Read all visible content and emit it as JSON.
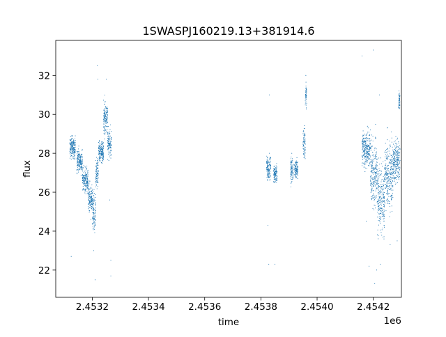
{
  "chart_data": {
    "type": "scatter",
    "title": "1SWASPJ160219.13+381914.6",
    "xlabel": "time",
    "ylabel": "flux",
    "x_offset_label": "1e6",
    "x_tick_labels": [
      "2.4532",
      "2.4534",
      "2.4536",
      "2.4538",
      "2.4540",
      "2.4542"
    ],
    "y_tick_labels": [
      "22",
      "24",
      "26",
      "28",
      "30",
      "32"
    ],
    "x_ticks": [
      2453200,
      2453400,
      2453600,
      2453800,
      2454000,
      2454200
    ],
    "y_ticks": [
      22,
      24,
      26,
      28,
      30,
      32
    ],
    "xlim": [
      2453070,
      2454300
    ],
    "ylim": [
      20.6,
      33.8
    ],
    "grid": false,
    "marker_color": "#1f77b4",
    "series": [
      {
        "name": "",
        "segments": [
          {
            "x_start": 2453120,
            "x_end": 2453140,
            "y_mid": 28.3,
            "y_spread": 0.9,
            "outliers": [
              [
                2453125,
                22.7
              ]
            ]
          },
          {
            "x_start": 2453145,
            "x_end": 2453165,
            "y_mid": 27.6,
            "y_spread": 1.0,
            "outliers": []
          },
          {
            "x_start": 2453165,
            "x_end": 2453185,
            "y_mid": 26.6,
            "y_spread": 1.1,
            "outliers": []
          },
          {
            "x_start": 2453185,
            "x_end": 2453200,
            "y_mid": 25.7,
            "y_spread": 1.2,
            "outliers": [
              [
                2453195,
                24.6
              ]
            ]
          },
          {
            "x_start": 2453200,
            "x_end": 2453212,
            "y_mid": 25.0,
            "y_spread": 1.6,
            "outliers": [
              [
                2453205,
                23.0
              ],
              [
                2453210,
                21.5
              ]
            ]
          },
          {
            "x_start": 2453212,
            "x_end": 2453222,
            "y_mid": 27.0,
            "y_spread": 1.2,
            "outliers": [
              [
                2453218,
                32.5
              ],
              [
                2453220,
                31.8
              ]
            ]
          },
          {
            "x_start": 2453222,
            "x_end": 2453240,
            "y_mid": 28.1,
            "y_spread": 1.0,
            "outliers": []
          },
          {
            "x_start": 2453240,
            "x_end": 2453255,
            "y_mid": 29.8,
            "y_spread": 1.4,
            "outliers": [
              [
                2453250,
                31.8
              ]
            ]
          },
          {
            "x_start": 2453255,
            "x_end": 2453268,
            "y_mid": 28.5,
            "y_spread": 1.2,
            "outliers": [
              [
                2453262,
                25.6
              ],
              [
                2453266,
                21.7
              ],
              [
                2453266,
                22.5
              ]
            ]
          },
          {
            "x_start": 2453820,
            "x_end": 2453835,
            "y_mid": 27.3,
            "y_spread": 1.0,
            "outliers": [
              [
                2453825,
                24.3
              ],
              [
                2453828,
                22.3
              ],
              [
                2453830,
                31.0
              ]
            ]
          },
          {
            "x_start": 2453845,
            "x_end": 2453858,
            "y_mid": 26.9,
            "y_spread": 0.8,
            "outliers": [
              [
                2453850,
                22.3
              ]
            ]
          },
          {
            "x_start": 2453905,
            "x_end": 2453915,
            "y_mid": 27.1,
            "y_spread": 1.1,
            "outliers": []
          },
          {
            "x_start": 2453920,
            "x_end": 2453932,
            "y_mid": 27.2,
            "y_spread": 0.7,
            "outliers": []
          },
          {
            "x_start": 2453950,
            "x_end": 2453958,
            "y_mid": 28.5,
            "y_spread": 1.6,
            "outliers": []
          },
          {
            "x_start": 2453958,
            "x_end": 2453963,
            "y_mid": 31.0,
            "y_spread": 1.0,
            "outliers": [
              [
                2453960,
                32.0
              ]
            ]
          },
          {
            "x_start": 2454160,
            "x_end": 2454190,
            "y_mid": 28.2,
            "y_spread": 1.5,
            "outliers": [
              [
                2454160,
                33.0
              ],
              [
                2454175,
                24.5
              ],
              [
                2454185,
                22.2
              ]
            ]
          },
          {
            "x_start": 2454190,
            "x_end": 2454215,
            "y_mid": 27.0,
            "y_spread": 3.0,
            "outliers": [
              [
                2454200,
                33.3
              ],
              [
                2454205,
                21.3
              ],
              [
                2454212,
                22.0
              ]
            ]
          },
          {
            "x_start": 2454215,
            "x_end": 2454240,
            "y_mid": 25.6,
            "y_spread": 3.0,
            "outliers": [
              [
                2454222,
                31.0
              ],
              [
                2454225,
                22.3
              ],
              [
                2454238,
                23.6
              ]
            ]
          },
          {
            "x_start": 2454240,
            "x_end": 2454270,
            "y_mid": 26.9,
            "y_spread": 2.8,
            "outliers": [
              [
                2454250,
                29.3
              ],
              [
                2454260,
                23.3
              ]
            ]
          },
          {
            "x_start": 2454270,
            "x_end": 2454295,
            "y_mid": 27.6,
            "y_spread": 1.8,
            "outliers": [
              [
                2454285,
                23.5
              ]
            ]
          },
          {
            "x_start": 2454290,
            "x_end": 2454295,
            "y_mid": 30.7,
            "y_spread": 0.7,
            "outliers": []
          }
        ]
      }
    ]
  }
}
